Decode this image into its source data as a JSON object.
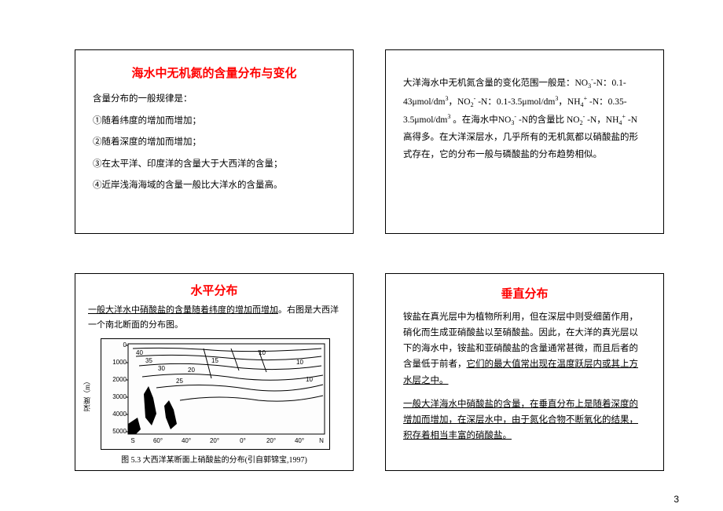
{
  "page_number": "3",
  "slides": {
    "tl": {
      "title": "海水中无机氮的含量分布与变化",
      "intro": "含量分布的一般规律是：",
      "rules": [
        "①随着纬度的增加而增加；",
        "②随着深度的增加而增加；",
        "③在太平洋、印度洋的含量大于大西洋的含量；",
        "④近岸浅海海域的含量一般比大洋水的含量高。"
      ]
    },
    "tr": {
      "text_html": "大洋海水中无机氮含量的变化范围一般是：NO<sub>3</sub><sup>-</sup>-N：0.1-43μmol/dm<sup>3</sup>，NO<sub>2</sub><sup>-</sup> -N：0.1-3.5μmol/dm<sup>3</sup>，NH<sub>4</sub><sup>+</sup> -N：0.35-3.5μmol/dm<sup>3</sup> 。在海水中NO<sub>3</sub><sup>-</sup> -N的含量比 NO<sub>2</sub><sup>-</sup> -N，NH<sub>4</sub><sup>+</sup> -N高得多。在大洋深层水，几乎所有的无机氮都以硝酸盐的形式存在，它的分布一般与磷酸盐的分布趋势相似。"
    },
    "bl": {
      "title": "水平分布",
      "intro_html": "<span class=\"underline\">一般大洋水中硝酸盐的含量随着纬度的增加而增加</span>。右图是大西洋一个南北断面的分布图。",
      "chart": {
        "ylabel": "深度（m）",
        "y_ticks": [
          "0",
          "1000",
          "2000",
          "3000",
          "4000",
          "5000"
        ],
        "x_ticks": [
          "S",
          "60°",
          "40°",
          "20°",
          "0°",
          "20°",
          "40°",
          "N"
        ],
        "contour_labels": [
          "10",
          "15",
          "20",
          "25",
          "30",
          "35",
          "40",
          "10",
          "10"
        ],
        "caption": "图 5.3  大西洋某断面上硝酸盐的分布(引自郭锦宝,1997)"
      }
    },
    "br": {
      "title": "垂直分布",
      "para1_html": "铵盐在真光层中为植物所利用，但在深层中则受细菌作用，硝化而生成亚硝酸盐以至硝酸盐。因此，在大洋的真光层以下的海水中，铵盐和亚硝酸盐的含量通常甚微，而且后者的含量低于前者，<span class=\"underline\">它们的最大值常出现在温度跃层内或其上方水层之中。</span>",
      "para2_html": "<span class=\"underline\">一般大洋海水中硝酸盐的含量，在垂直分布上是随着深度的增加而增加，在深层水中，由于氮化合物不断氧化的结果，积存着相当丰富的硝酸盐。</span>"
    }
  }
}
